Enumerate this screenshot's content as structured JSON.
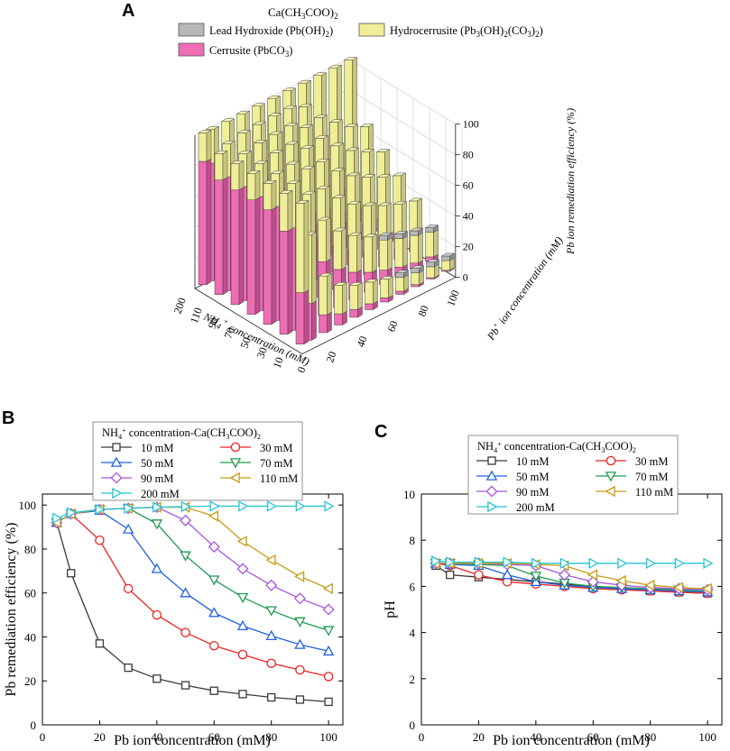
{
  "chart_data": [
    {
      "panel": "A",
      "type": "bar",
      "title": "Ca(CH3COO)2",
      "legend": [
        "Lead Hydroxide (Pb(OH)2)",
        "Hydrocerrusite (Pb3(OH)2(CO3)2)",
        "Cerrusite (PbCO3)"
      ],
      "xlabel": "NH4+ concentration (mM)",
      "ylabel": "Pb ion concentration (mM)",
      "zlabel": "Pb ion remediation efficiency (%)",
      "x_ticks": [
        "200",
        "110",
        "90",
        "70",
        "50",
        "30",
        "10"
      ],
      "y_ticks": [
        "0",
        "20",
        "40",
        "60",
        "80",
        "100"
      ],
      "z_ticks": [
        "0",
        "20",
        "40",
        "60",
        "80",
        "100"
      ],
      "colors": {
        "lead_hydroxide": "#b8b8b8",
        "hydrocerrusite": "#f0ee96",
        "cerrusite": "#ee6db4"
      },
      "series_note": "stacked 3D bars: per NH4+ concentration row, Pb ion concentration 5-100 mM"
    },
    {
      "panel": "B",
      "type": "line",
      "xlabel": "Pb ion concentration (mM)",
      "ylabel": "Pb remediation efficiency (%)",
      "xlim": [
        0,
        105
      ],
      "ylim": [
        0,
        105
      ],
      "xticks": [
        0,
        20,
        40,
        60,
        80,
        100
      ],
      "yticks": [
        0,
        20,
        40,
        60,
        80,
        100
      ],
      "legend_title": "NH4+ concentration-Ca(CH3COO)2",
      "x": [
        5,
        10,
        20,
        30,
        40,
        50,
        60,
        70,
        80,
        90,
        100
      ],
      "series": [
        {
          "name": "10 mM",
          "marker": "square",
          "color": "#3a3a3a",
          "values": [
            92,
            69,
            37,
            26,
            21,
            18,
            15.5,
            14,
            12.5,
            11.5,
            10.5
          ]
        },
        {
          "name": "30 mM",
          "marker": "circle",
          "color": "#ee2222",
          "values": [
            92,
            96,
            84,
            62,
            50,
            42,
            36,
            32,
            28,
            25,
            22
          ]
        },
        {
          "name": "50 mM",
          "marker": "triangle-up",
          "color": "#2060e0",
          "values": [
            92,
            96,
            97.5,
            89,
            71,
            60,
            51,
            45,
            40.5,
            36.5,
            33.5
          ]
        },
        {
          "name": "70 mM",
          "marker": "triangle-down",
          "color": "#1e9a50",
          "values": [
            92,
            96,
            98,
            98.5,
            91.5,
            77,
            66,
            58,
            52,
            47,
            43
          ]
        },
        {
          "name": "90 mM",
          "marker": "diamond",
          "color": "#a855e0",
          "values": [
            92,
            96,
            98,
            98.5,
            99,
            93,
            81,
            71,
            63.5,
            57.5,
            52.5
          ]
        },
        {
          "name": "110 mM",
          "marker": "triangle-left",
          "color": "#c99a16",
          "values": [
            92,
            96,
            98,
            98.5,
            99,
            99,
            95,
            83.5,
            75,
            67.5,
            62
          ]
        },
        {
          "name": "200 mM",
          "marker": "triangle-right",
          "color": "#22c4d4",
          "values": [
            94,
            96.5,
            98,
            98.5,
            99,
            99.3,
            99.5,
            99.5,
            99.5,
            99.5,
            99.5
          ]
        }
      ]
    },
    {
      "panel": "C",
      "type": "line",
      "xlabel": "Pb ion concentration (mM)",
      "ylabel": "pH",
      "xlim": [
        0,
        105
      ],
      "ylim": [
        0,
        10
      ],
      "xticks": [
        0,
        20,
        40,
        60,
        80,
        100
      ],
      "yticks": [
        0,
        2,
        4,
        6,
        8,
        10
      ],
      "legend_title": "NH4+ concentration-Ca(CH3COO)2",
      "x": [
        5,
        10,
        20,
        30,
        40,
        50,
        60,
        70,
        80,
        90,
        100
      ],
      "series": [
        {
          "name": "10 mM",
          "marker": "square",
          "color": "#3a3a3a",
          "values": [
            6.9,
            6.5,
            6.4,
            6.3,
            6.2,
            6.1,
            6.0,
            5.9,
            5.8,
            5.75,
            5.7
          ]
        },
        {
          "name": "30 mM",
          "marker": "circle",
          "color": "#ee2222",
          "values": [
            7.0,
            6.9,
            6.5,
            6.2,
            6.1,
            6.0,
            5.9,
            5.85,
            5.8,
            5.75,
            5.7
          ]
        },
        {
          "name": "50 mM",
          "marker": "triangle-up",
          "color": "#2060e0",
          "values": [
            7.0,
            6.95,
            6.9,
            6.5,
            6.2,
            6.05,
            5.95,
            5.9,
            5.85,
            5.8,
            5.75
          ]
        },
        {
          "name": "70 mM",
          "marker": "triangle-down",
          "color": "#1e9a50",
          "values": [
            7.0,
            7.0,
            6.95,
            6.9,
            6.45,
            6.15,
            6.0,
            5.95,
            5.9,
            5.85,
            5.8
          ]
        },
        {
          "name": "90 mM",
          "marker": "diamond",
          "color": "#a855e0",
          "values": [
            7.0,
            7.0,
            7.0,
            6.95,
            6.9,
            6.5,
            6.2,
            6.05,
            5.95,
            5.9,
            5.85
          ]
        },
        {
          "name": "110 mM",
          "marker": "triangle-left",
          "color": "#c99a16",
          "values": [
            7.0,
            7.0,
            7.0,
            7.0,
            6.95,
            6.9,
            6.5,
            6.25,
            6.05,
            5.95,
            5.9
          ]
        },
        {
          "name": "200 mM",
          "marker": "triangle-right",
          "color": "#22c4d4",
          "values": [
            7.1,
            7.05,
            7.05,
            7.05,
            7.0,
            7.0,
            7.0,
            7.0,
            7.0,
            7.0,
            7.0
          ]
        }
      ]
    }
  ],
  "labels": {
    "panel_a": "A",
    "panel_b": "B",
    "panel_c": "C"
  }
}
